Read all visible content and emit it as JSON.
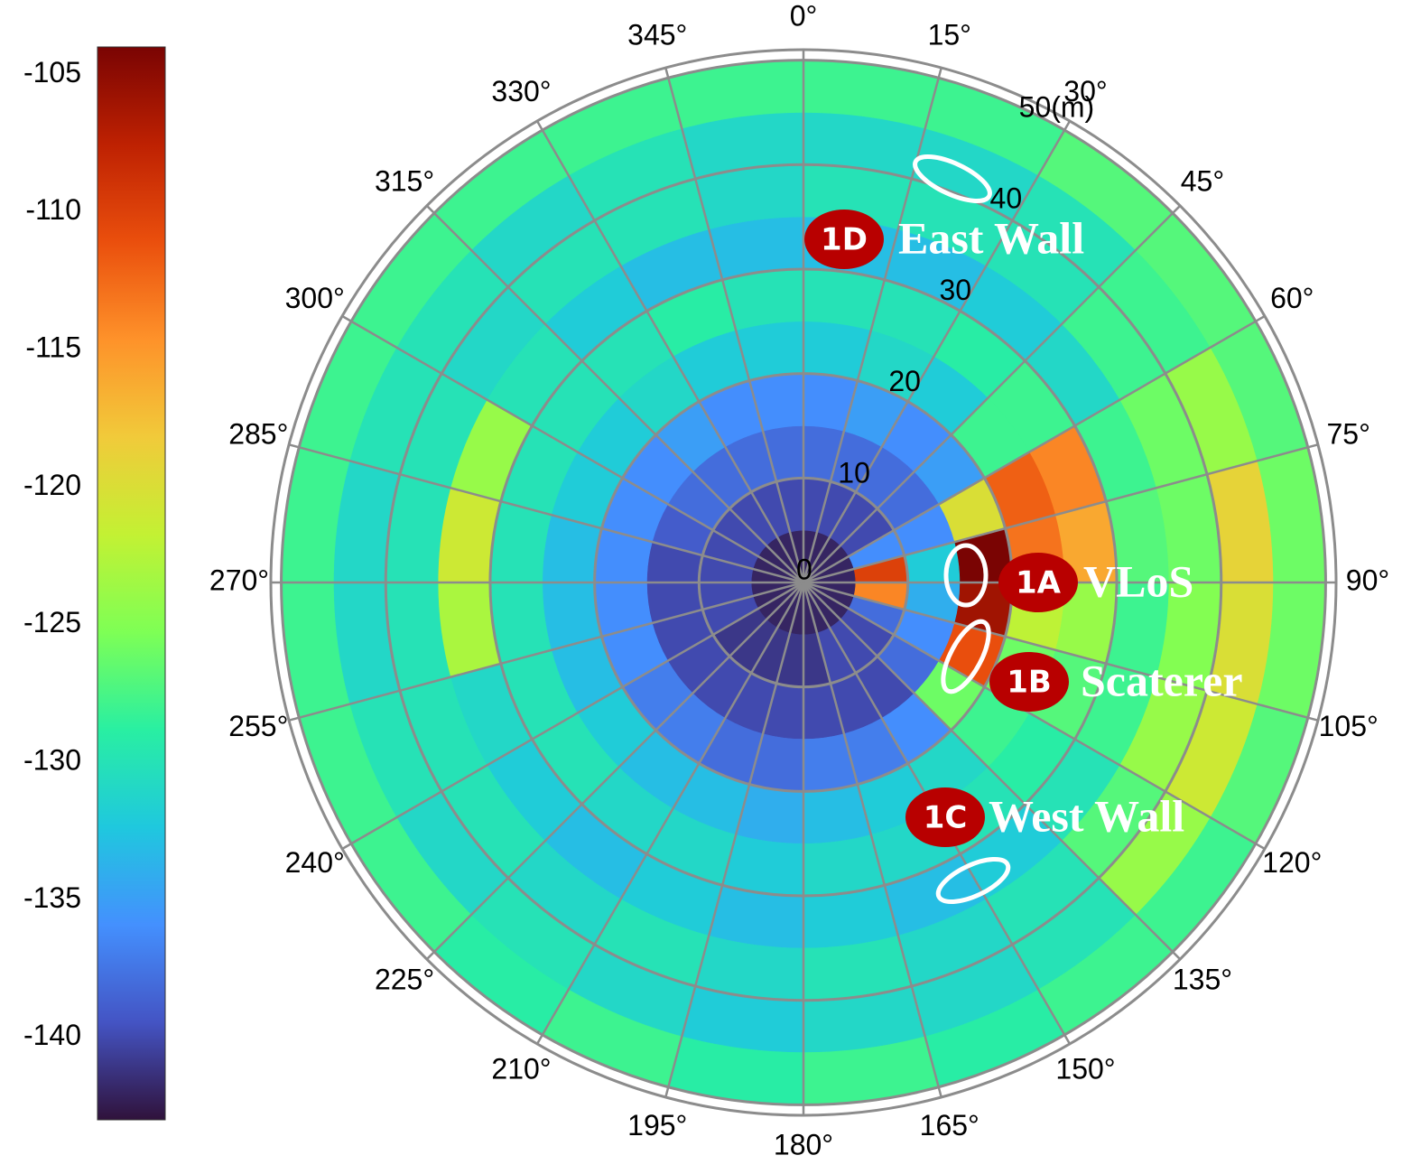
{
  "chart_data": {
    "type": "polar-heatmap",
    "rlim": [
      0,
      51
    ],
    "rticks": [
      0,
      10,
      20,
      30,
      40,
      {
        "value": 50,
        "label": "50(m)"
      }
    ],
    "thetaticks": [
      {
        "value": 0,
        "label": "0°"
      },
      {
        "value": 15,
        "label": "15°"
      },
      {
        "value": 30,
        "label": "30°"
      },
      {
        "value": 45,
        "label": "45°"
      },
      {
        "value": 60,
        "label": "60°"
      },
      {
        "value": 75,
        "label": "75°"
      },
      {
        "value": 90,
        "label": "90°"
      },
      {
        "value": 105,
        "label": "105°"
      },
      {
        "value": 120,
        "label": "120°"
      },
      {
        "value": 135,
        "label": "135°"
      },
      {
        "value": 150,
        "label": "150°"
      },
      {
        "value": 165,
        "label": "165°"
      },
      {
        "value": 180,
        "label": "180°"
      },
      {
        "value": 195,
        "label": "195°"
      },
      {
        "value": 210,
        "label": "210°"
      },
      {
        "value": 225,
        "label": "225°"
      },
      {
        "value": 240,
        "label": "240°"
      },
      {
        "value": 255,
        "label": "255°"
      },
      {
        "value": 270,
        "label": "270°"
      },
      {
        "value": 285,
        "label": "285°"
      },
      {
        "value": 300,
        "label": "300°"
      },
      {
        "value": 315,
        "label": "315°"
      },
      {
        "value": 330,
        "label": "330°"
      },
      {
        "value": 345,
        "label": "345°"
      }
    ],
    "theta_bins": [
      0,
      15,
      30,
      45,
      60,
      75,
      90,
      105,
      120,
      135,
      150,
      165,
      180,
      195,
      210,
      225,
      240,
      255,
      270,
      285,
      300,
      315,
      330,
      345,
      360
    ],
    "r_bins": [
      0,
      5,
      10,
      15,
      20,
      25,
      30,
      35,
      40,
      45,
      50
    ],
    "values": [
      [
        -142,
        -140,
        -138,
        -136,
        -132,
        -130,
        -133,
        -130,
        -131,
        -128
      ],
      [
        -142,
        -140,
        -138,
        -135,
        -131,
        -130,
        -133,
        -130,
        -131,
        -128
      ],
      [
        -142,
        -140,
        -138,
        -136,
        -132,
        -129,
        -132,
        -130,
        -130,
        -127
      ],
      [
        -142,
        -140,
        -138,
        -135,
        -128,
        -128,
        -131,
        -128,
        -128,
        -127
      ],
      [
        -142,
        -136,
        -136,
        -120,
        -112,
        -114,
        -128,
        -126,
        -124,
        -127
      ],
      [
        -142,
        -110,
        -132,
        -104,
        -113,
        -116,
        -127,
        -126,
        -119,
        -126
      ],
      [
        -142,
        -114,
        -134,
        -106,
        -122,
        -124,
        -128,
        -125,
        -120,
        -126
      ],
      [
        -142,
        -138,
        -136,
        -111,
        -126,
        -127,
        -128,
        -124,
        -121,
        -127
      ],
      [
        -142,
        -140,
        -138,
        -126,
        -128,
        -129,
        -130,
        -127,
        -124,
        -128
      ],
      [
        -142,
        -140,
        -140,
        -136,
        -131,
        -130,
        -132,
        -130,
        -130,
        -128
      ],
      [
        -142,
        -140,
        -140,
        -137,
        -132,
        -131,
        -133,
        -131,
        -131,
        -129
      ],
      [
        -142,
        -141,
        -140,
        -137,
        -133,
        -131,
        -132,
        -130,
        -131,
        -128
      ],
      [
        -142,
        -141,
        -140,
        -138,
        -134,
        -132,
        -133,
        -131,
        -132,
        -129
      ],
      [
        -142,
        -141,
        -140,
        -138,
        -133,
        -131,
        -132,
        -130,
        -131,
        -128
      ],
      [
        -142,
        -141,
        -140,
        -137,
        -133,
        -131,
        -133,
        -131,
        -130,
        -129
      ],
      [
        -142,
        -141,
        -140,
        -137,
        -132,
        -130,
        -132,
        -130,
        -131,
        -128
      ],
      [
        -142,
        -140,
        -140,
        -136,
        -133,
        -130,
        -131,
        -130,
        -130,
        -128
      ],
      [
        -142,
        -140,
        -140,
        -136,
        -133,
        -130,
        -123,
        -130,
        -131,
        -128
      ],
      [
        -142,
        -140,
        -140,
        -136,
        -133,
        -130,
        -121,
        -130,
        -131,
        -128
      ],
      [
        -142,
        -140,
        -139,
        -136,
        -132,
        -130,
        -124,
        -130,
        -130,
        -128
      ],
      [
        -142,
        -140,
        -138,
        -136,
        -132,
        -130,
        -130,
        -131,
        -130,
        -128
      ],
      [
        -142,
        -140,
        -138,
        -135,
        -131,
        -130,
        -132,
        -130,
        -131,
        -128
      ],
      [
        -142,
        -140,
        -138,
        -136,
        -132,
        -129,
        -133,
        -130,
        -130,
        -128
      ],
      [
        -142,
        -140,
        -138,
        -136,
        -132,
        -130,
        -133,
        -131,
        -131,
        -128
      ]
    ],
    "clim": [
      -143,
      -104
    ],
    "cticks": [
      -105,
      -110,
      -115,
      -120,
      -125,
      -130,
      -135,
      -140
    ],
    "colormap": [
      "#30123b",
      "#4454c4",
      "#4490fe",
      "#1fc8de",
      "#29efa2",
      "#7eff55",
      "#c3f133",
      "#f1ca3a",
      "#fe922a",
      "#ea4f0d",
      "#be2102",
      "#7a0403"
    ],
    "grid": true,
    "annotations": [
      {
        "badge": "1D",
        "text": "East Wall"
      },
      {
        "badge": "1A",
        "text": "VLoS"
      },
      {
        "badge": "1B",
        "text": "Scaterer"
      },
      {
        "badge": "1C",
        "text": "West Wall"
      }
    ]
  }
}
